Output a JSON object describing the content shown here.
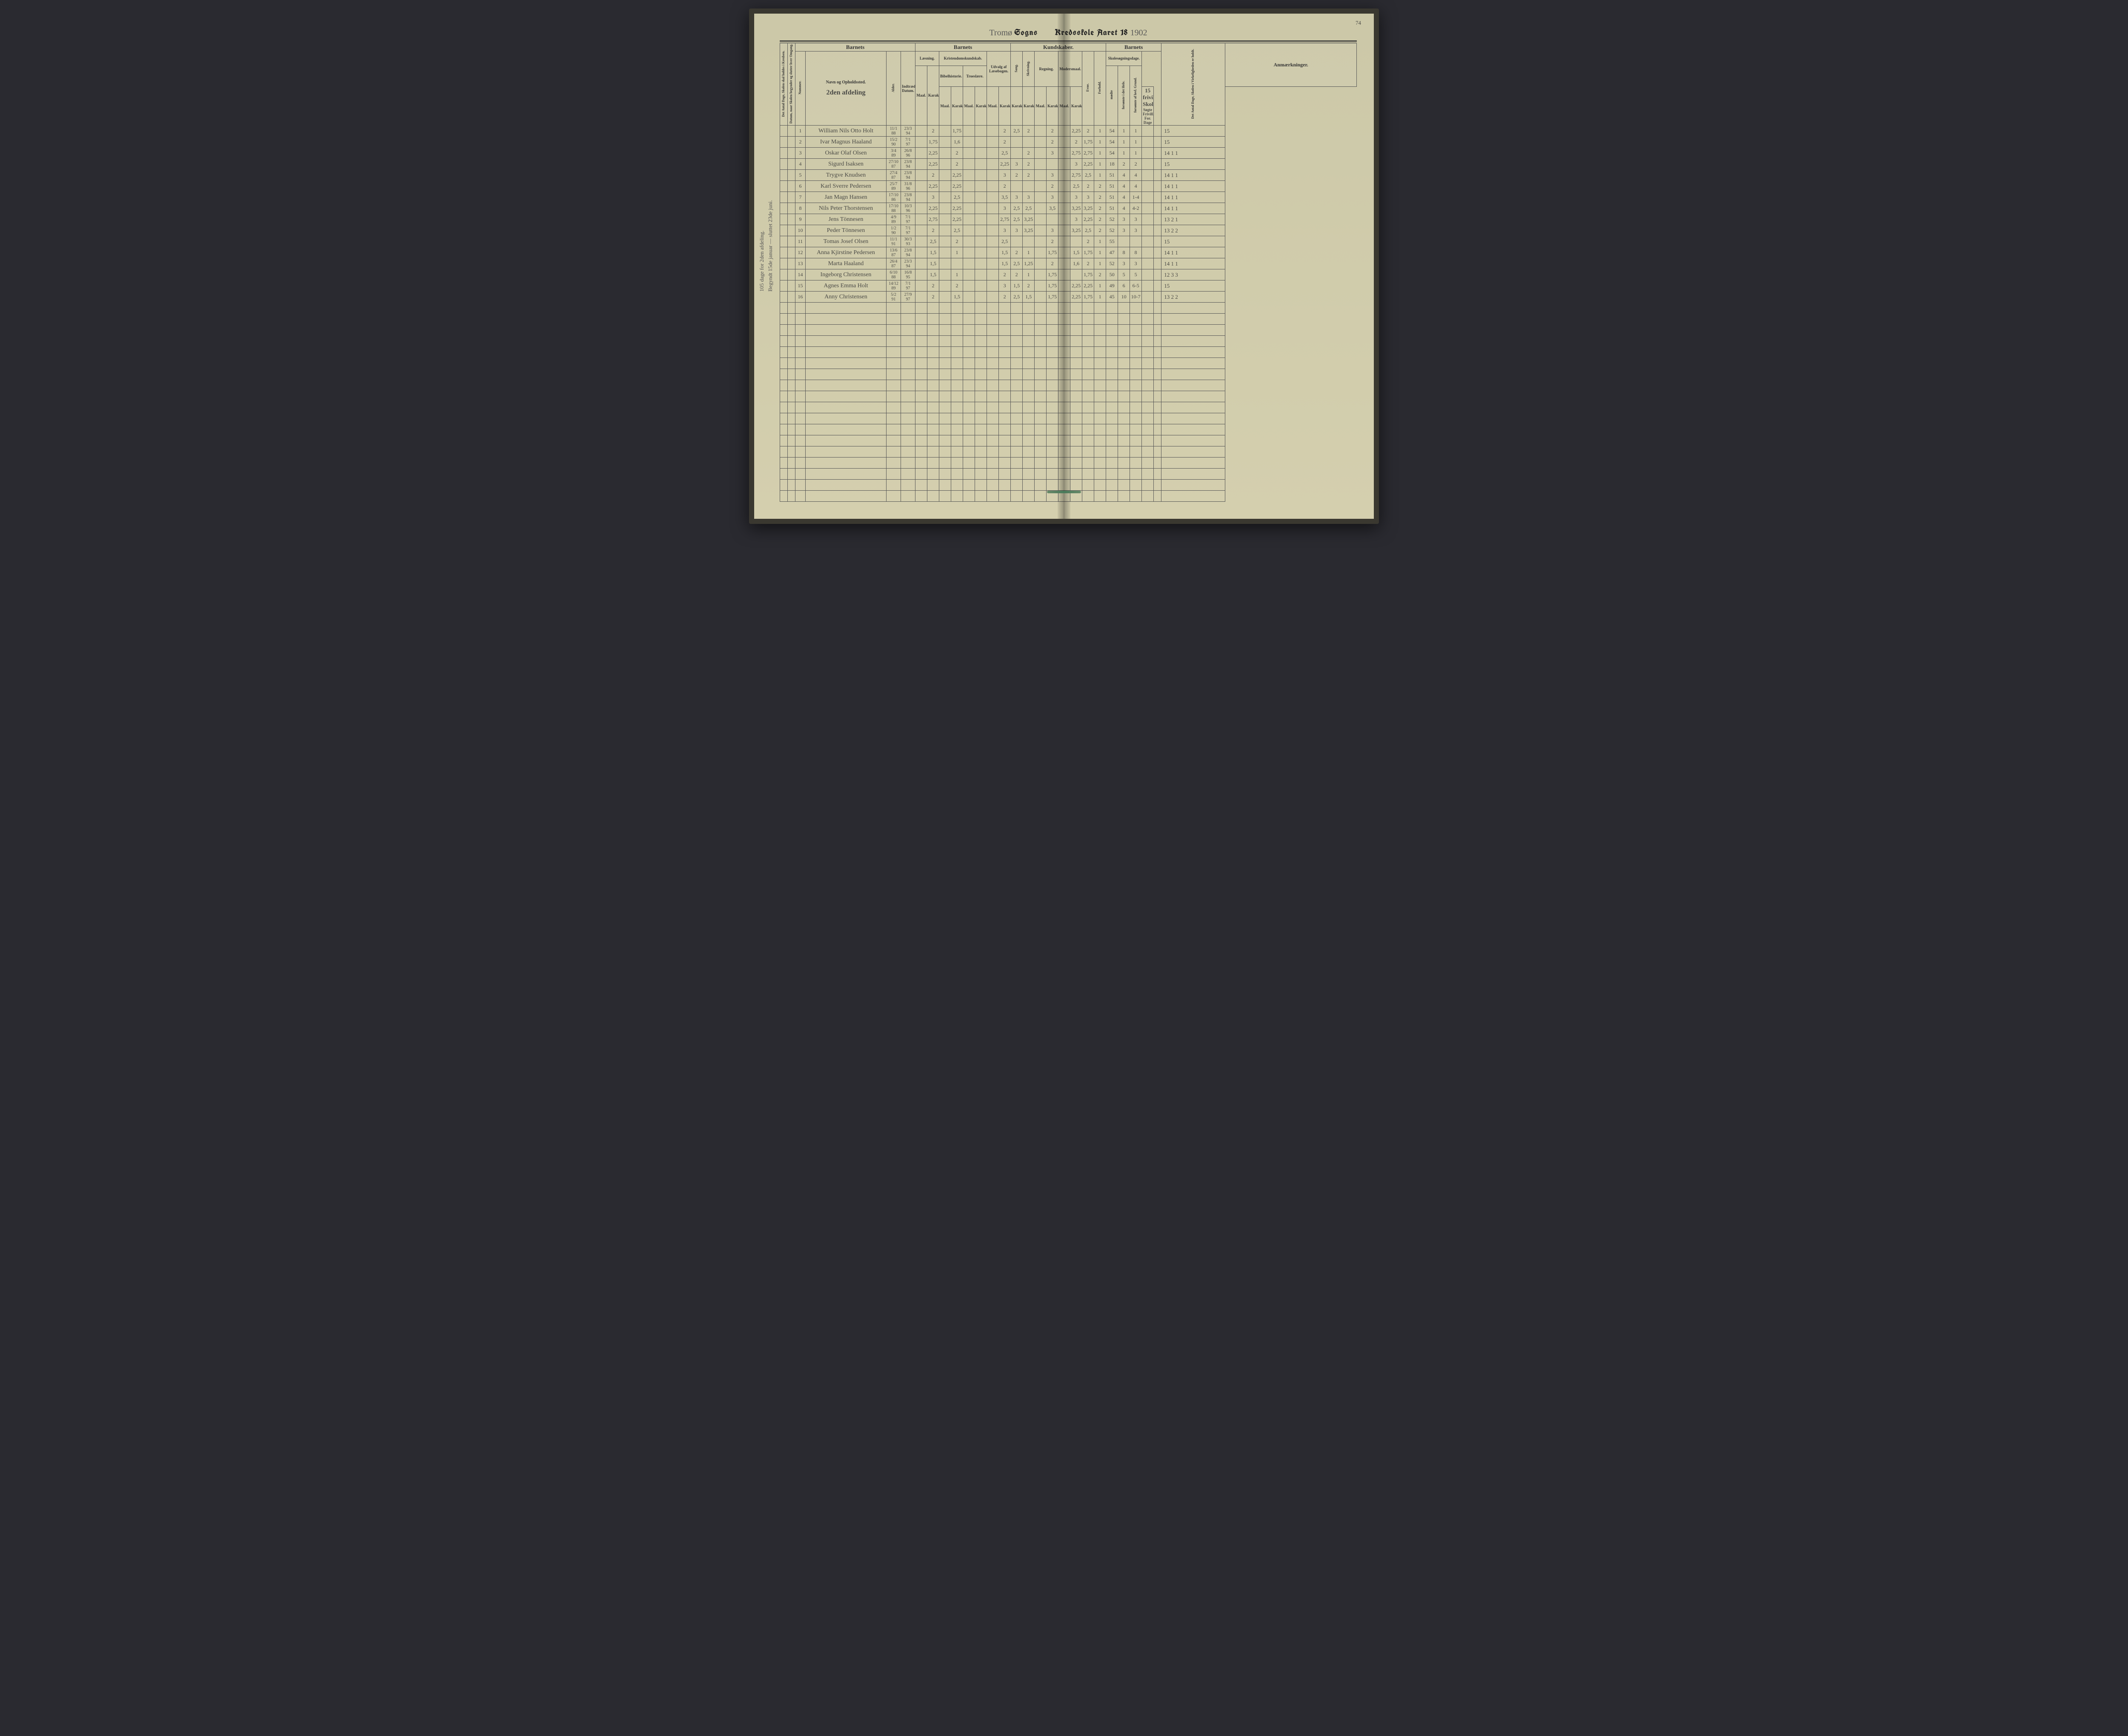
{
  "page_number": "74",
  "title": {
    "parish_hand": "Tromø",
    "sogns": "Sogns",
    "kredsskole": "Kredsskole Aaret 18",
    "year_hand": "1902"
  },
  "side_notes": {
    "left1": "105 dage for 2den afdeling.",
    "left2": "Begyndt 15de januar — sluttet 23de juni."
  },
  "section_hand": "2den afdeling",
  "headers": {
    "grp_barnets1": "Barnets",
    "grp_barnets2": "Barnets",
    "grp_kundskaber": "Kundskaber.",
    "grp_barnets3": "Barnets",
    "col_antal_dage": "Det Antal Dage, Skolen skal holdes i Kredsen.",
    "col_datum": "Datum, naar Skolen begynder og slutter hver Omgang.",
    "col_nummer": "Nummer.",
    "col_navn": "Navn og Opholdssted.",
    "col_alder": "Alder.",
    "col_indtr": "Indtrædelses-Datum.",
    "grp_laesning": "Læsning.",
    "grp_kristen": "Kristendomskundskab.",
    "sub_bibel": "Bibelhistorie.",
    "sub_troes": "Troeslære.",
    "grp_udvalg": "Udvalg af Læsebogen.",
    "grp_sang": "Sang.",
    "grp_skriv": "Skrivning.",
    "grp_regning": "Regning.",
    "grp_moders": "Modersmaal.",
    "col_evne": "Evne.",
    "col_forhold": "Forhold.",
    "grp_skoleso": "Skolesøgningsdage.",
    "sub_modte": "mødte",
    "sub_fors_tot": "forsømte i det Hele.",
    "sub_fors_lov": "forsømte af lovl. Grund.",
    "col_antal_virk": "Det Antal Dage, Skolen i Virkeligheden er holdt.",
    "col_anm": "Anmærkninger.",
    "sub_maal": "Maal.",
    "sub_kar": "Karakter."
  },
  "remarks_header": "15 frivillige Skoledage",
  "remarks_sub": "Søgte Frivill. For. Dage",
  "rows": [
    {
      "n": "1",
      "name": "William Nils Otto Holt",
      "ald": "11/1 88",
      "ind": "23/3 94",
      "l_m": "",
      "l_k": "2",
      "bh_m": "",
      "bh_k": "1,75",
      "tr_m": "",
      "tr_k": "",
      "ud_m": "",
      "ud_k": "2",
      "sg": "2,5",
      "sk": "2",
      "rg_m": "",
      "rg_k": "2",
      "md_m": "",
      "md_k": "2,25",
      "ev": "2",
      "fh": "1",
      "mo": "54",
      "f1": "1",
      "f2": "1",
      "vd": "",
      "anm": "15"
    },
    {
      "n": "2",
      "name": "Ivar Magnus Haaland",
      "ald": "15/2 90",
      "ind": "7/1 97",
      "l_m": "",
      "l_k": "1,75",
      "bh_m": "",
      "bh_k": "1,6",
      "tr_m": "",
      "tr_k": "",
      "ud_m": "",
      "ud_k": "2",
      "sg": "",
      "sk": "",
      "rg_m": "",
      "rg_k": "2",
      "md_m": "",
      "md_k": "2",
      "ev": "1,75",
      "fh": "1",
      "mo": "54",
      "f1": "1",
      "f2": "1",
      "vd": "",
      "anm": "15"
    },
    {
      "n": "3",
      "name": "Oskar Olaf Olsen",
      "ald": "3/4 89",
      "ind": "26/8 96",
      "l_m": "",
      "l_k": "2,25",
      "bh_m": "",
      "bh_k": "2",
      "tr_m": "",
      "tr_k": "",
      "ud_m": "",
      "ud_k": "2,5",
      "sg": "",
      "sk": "2",
      "rg_m": "",
      "rg_k": "3",
      "md_m": "",
      "md_k": "2,75",
      "ev": "2,75",
      "fh": "1",
      "mo": "54",
      "f1": "1",
      "f2": "1",
      "vd": "",
      "anm": "14  1  1"
    },
    {
      "n": "4",
      "name": "Sigurd Isaksen",
      "ald": "27/10 87",
      "ind": "23/8 94",
      "l_m": "",
      "l_k": "2,25",
      "bh_m": "",
      "bh_k": "2",
      "tr_m": "",
      "tr_k": "",
      "ud_m": "",
      "ud_k": "2,25",
      "sg": "3",
      "sk": "2",
      "rg_m": "",
      "rg_k": "",
      "md_m": "",
      "md_k": "3",
      "ev": "2,25",
      "fh": "1",
      "mo": "18",
      "f1": "2",
      "f2": "2",
      "vd": "",
      "anm": "15"
    },
    {
      "n": "5",
      "name": "Trygve Knudsen",
      "ald": "27/4 87",
      "ind": "23/8 94",
      "l_m": "",
      "l_k": "2",
      "bh_m": "",
      "bh_k": "2,25",
      "tr_m": "",
      "tr_k": "",
      "ud_m": "",
      "ud_k": "3",
      "sg": "2",
      "sk": "2",
      "rg_m": "",
      "rg_k": "3",
      "md_m": "",
      "md_k": "2,75",
      "ev": "2,5",
      "fh": "1",
      "mo": "51",
      "f1": "4",
      "f2": "4",
      "vd": "",
      "anm": "14  1  1"
    },
    {
      "n": "6",
      "name": "Karl Sverre Pedersen",
      "ald": "25/7 89",
      "ind": "31/8 96",
      "l_m": "",
      "l_k": "2,25",
      "bh_m": "",
      "bh_k": "2,25",
      "tr_m": "",
      "tr_k": "",
      "ud_m": "",
      "ud_k": "2",
      "sg": "",
      "sk": "",
      "rg_m": "",
      "rg_k": "2",
      "md_m": "",
      "md_k": "2,5",
      "ev": "2",
      "fh": "2",
      "mo": "51",
      "f1": "4",
      "f2": "4",
      "vd": "",
      "anm": "14  1  1"
    },
    {
      "n": "7",
      "name": "Jan Magn Hansen",
      "ald": "17/10 86",
      "ind": "23/8 94",
      "l_m": "",
      "l_k": "3",
      "bh_m": "",
      "bh_k": "2,5",
      "tr_m": "",
      "tr_k": "",
      "ud_m": "",
      "ud_k": "3,5",
      "sg": "3",
      "sk": "3",
      "rg_m": "",
      "rg_k": "3",
      "md_m": "",
      "md_k": "3",
      "ev": "3",
      "fh": "2",
      "mo": "51",
      "f1": "4",
      "f2": "1-4",
      "vd": "",
      "anm": "14  1  1"
    },
    {
      "n": "8",
      "name": "Nils Peter Thorstensen",
      "ald": "17/10 88",
      "ind": "10/3 96",
      "l_m": "",
      "l_k": "2,25",
      "bh_m": "",
      "bh_k": "2,25",
      "tr_m": "",
      "tr_k": "",
      "ud_m": "",
      "ud_k": "3",
      "sg": "2,5",
      "sk": "2,5",
      "rg_m": "",
      "rg_k": "3,5",
      "md_m": "",
      "md_k": "3,25",
      "ev": "3,25",
      "fh": "2",
      "mo": "51",
      "f1": "4",
      "f2": "4-2",
      "vd": "",
      "anm": "14  1  1"
    },
    {
      "n": "9",
      "name": "Jens Tönnesen",
      "ald": "4/9 89",
      "ind": "7/1 97",
      "l_m": "",
      "l_k": "2,75",
      "bh_m": "",
      "bh_k": "2,25",
      "tr_m": "",
      "tr_k": "",
      "ud_m": "",
      "ud_k": "2,75",
      "sg": "2,5",
      "sk": "3,25",
      "rg_m": "",
      "rg_k": "",
      "md_m": "",
      "md_k": "3",
      "ev": "2,25",
      "fh": "2",
      "mo": "52",
      "f1": "3",
      "f2": "3",
      "vd": "",
      "anm": "13  2  1"
    },
    {
      "n": "10",
      "name": "Peder Tönnesen",
      "ald": "1/2 90",
      "ind": "7/1 97",
      "l_m": "",
      "l_k": "2",
      "bh_m": "",
      "bh_k": "2,5",
      "tr_m": "",
      "tr_k": "",
      "ud_m": "",
      "ud_k": "3",
      "sg": "3",
      "sk": "3,25",
      "rg_m": "",
      "rg_k": "3",
      "md_m": "",
      "md_k": "3,25",
      "ev": "2,5",
      "fh": "2",
      "mo": "52",
      "f1": "3",
      "f2": "3",
      "vd": "",
      "anm": "13  2  2"
    },
    {
      "n": "11",
      "name": "Tomas Josef Olsen",
      "ald": "11/1 91",
      "ind": "30/3 93",
      "l_m": "",
      "l_k": "2,5",
      "bh_m": "",
      "bh_k": "2",
      "tr_m": "",
      "tr_k": "",
      "ud_m": "",
      "ud_k": "2,5",
      "sg": "",
      "sk": "",
      "rg_m": "",
      "rg_k": "2",
      "md_m": "",
      "md_k": "",
      "ev": "2",
      "fh": "1",
      "mo": "55",
      "f1": "",
      "f2": "",
      "vd": "",
      "anm": "15"
    },
    {
      "n": "12",
      "name": "Anna Kjirstine Pedersen",
      "ald": "13/6 87",
      "ind": "23/8 94",
      "l_m": "",
      "l_k": "1,5",
      "bh_m": "",
      "bh_k": "1",
      "tr_m": "",
      "tr_k": "",
      "ud_m": "",
      "ud_k": "1,5",
      "sg": "2",
      "sk": "1",
      "rg_m": "",
      "rg_k": "1,75",
      "md_m": "",
      "md_k": "1,5",
      "ev": "1,75",
      "fh": "1",
      "mo": "47",
      "f1": "8",
      "f2": "8",
      "vd": "",
      "anm": "14  1  1"
    },
    {
      "n": "13",
      "name": "Marta Haaland",
      "ald": "26/4 87",
      "ind": "23/3 94",
      "l_m": "",
      "l_k": "1,5",
      "bh_m": "",
      "bh_k": "",
      "tr_m": "",
      "tr_k": "",
      "ud_m": "",
      "ud_k": "1,5",
      "sg": "2,5",
      "sk": "1,25",
      "rg_m": "",
      "rg_k": "2",
      "md_m": "",
      "md_k": "1,6",
      "ev": "2",
      "fh": "1",
      "mo": "52",
      "f1": "3",
      "f2": "3",
      "vd": "",
      "anm": "14  1  1"
    },
    {
      "n": "14",
      "name": "Ingeborg Christensen",
      "ald": "6/10 88",
      "ind": "16/8 95",
      "l_m": "",
      "l_k": "1,5",
      "bh_m": "",
      "bh_k": "1",
      "tr_m": "",
      "tr_k": "",
      "ud_m": "",
      "ud_k": "2",
      "sg": "2",
      "sk": "1",
      "rg_m": "",
      "rg_k": "1,75",
      "md_m": "",
      "md_k": "",
      "ev": "1,75",
      "fh": "2",
      "mo": "50",
      "f1": "5",
      "f2": "5",
      "vd": "",
      "anm": "12  3  3"
    },
    {
      "n": "15",
      "name": "Agnes Emma Holt",
      "ald": "14/12 89",
      "ind": "7/1 97",
      "l_m": "",
      "l_k": "2",
      "bh_m": "",
      "bh_k": "2",
      "tr_m": "",
      "tr_k": "",
      "ud_m": "",
      "ud_k": "3",
      "sg": "1,5",
      "sk": "2",
      "rg_m": "",
      "rg_k": "1,75",
      "md_m": "",
      "md_k": "2,25",
      "ev": "2,25",
      "fh": "1",
      "mo": "49",
      "f1": "6",
      "f2": "6-5",
      "vd": "",
      "anm": "15"
    },
    {
      "n": "16",
      "name": "Anny Christensen",
      "ald": "5/2 91",
      "ind": "27/9 97",
      "l_m": "",
      "l_k": "2",
      "bh_m": "",
      "bh_k": "1,5",
      "tr_m": "",
      "tr_k": "",
      "ud_m": "",
      "ud_k": "2",
      "sg": "2,5",
      "sk": "1,5",
      "rg_m": "",
      "rg_k": "1,75",
      "md_m": "",
      "md_k": "2,25",
      "ev": "1,75",
      "fh": "1",
      "mo": "45",
      "f1": "10",
      "f2": "10-7",
      "vd": "",
      "anm": "13  2  2"
    }
  ],
  "colors": {
    "paper": "#d4cfae",
    "ink": "#333333",
    "hand": "#4a4a46",
    "border": "#555555",
    "binding": "#3a3830"
  },
  "empty_rows": 18
}
